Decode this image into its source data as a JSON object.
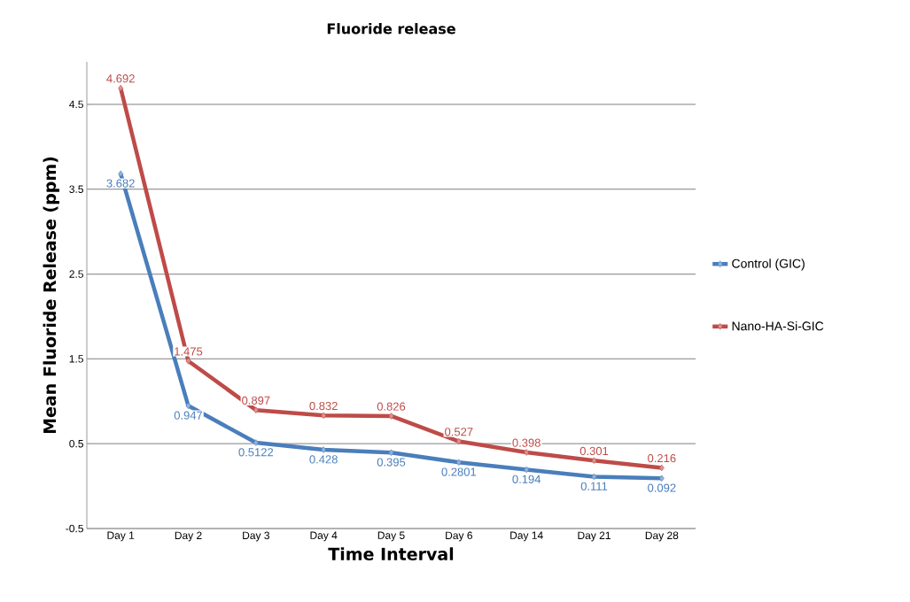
{
  "chart_data": {
    "type": "line",
    "title": "Fluoride release",
    "xlabel": "Time Interval",
    "ylabel": "Mean Fluoride Release (ppm)",
    "categories": [
      "Day 1",
      "Day 2",
      "Day 3",
      "Day 4",
      "Day 5",
      "Day 6",
      "Day 14",
      "Day 21",
      "Day 28"
    ],
    "series": [
      {
        "name": "Control (GIC)",
        "color": "#4a7ebb",
        "values": [
          3.682,
          0.947,
          0.5122,
          0.428,
          0.395,
          0.2801,
          0.194,
          0.111,
          0.092
        ]
      },
      {
        "name": "Nano-HA-Si-GIC",
        "color": "#be4b48",
        "values": [
          4.692,
          1.475,
          0.897,
          0.832,
          0.826,
          0.527,
          0.398,
          0.301,
          0.216
        ]
      }
    ],
    "ylim": [
      -0.5,
      5
    ],
    "yticks": [
      -0.5,
      0.5,
      1.5,
      2.5,
      3.5,
      4.5
    ],
    "grid": "y",
    "legend": "right",
    "marker": "diamond",
    "line_style": "solid",
    "data_labels": true
  }
}
